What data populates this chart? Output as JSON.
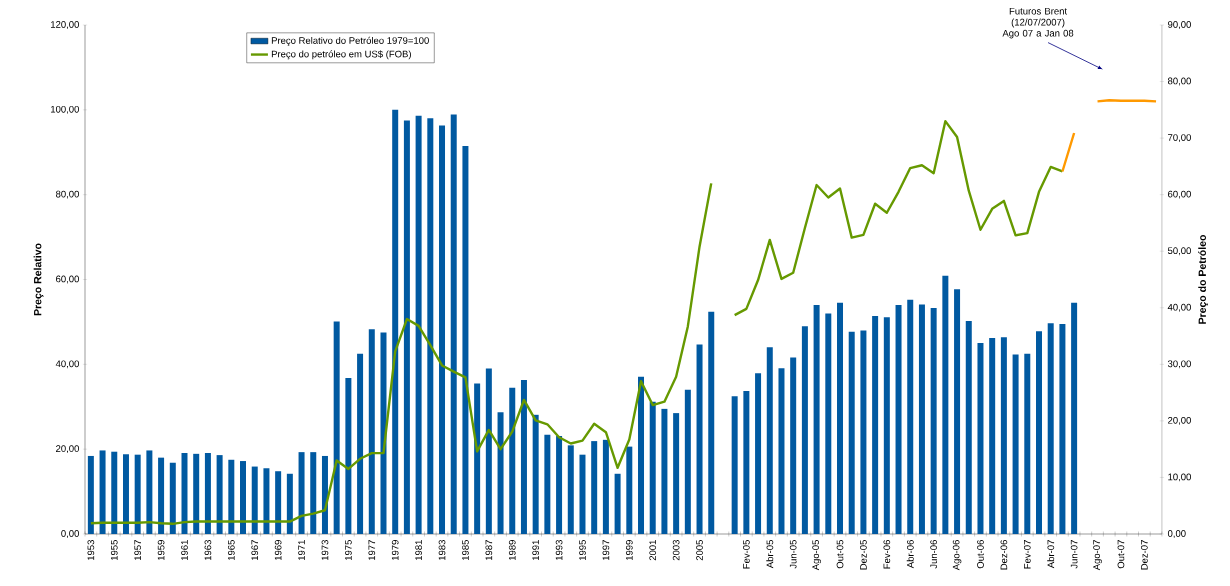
{
  "chart_data": {
    "type": "bar",
    "ylabel": "Preço Relativo",
    "y2label": "Preço do Petróleo",
    "legend": "top left",
    "categories": [
      "1953",
      null,
      "1955",
      null,
      "1957",
      null,
      "1959",
      null,
      "1961",
      null,
      "1963",
      null,
      "1965",
      null,
      "1967",
      null,
      "1969",
      null,
      "1971",
      null,
      "1973",
      null,
      "1975",
      null,
      "1977",
      null,
      "1979",
      null,
      "1981",
      null,
      "1983",
      null,
      "1985",
      null,
      "1987",
      null,
      "1989",
      null,
      "1991",
      null,
      "1993",
      null,
      "1995",
      null,
      "1997",
      null,
      "1999",
      null,
      "2001",
      null,
      "2003",
      null,
      "2005",
      null,
      null,
      null,
      "Fev-05",
      null,
      "Abr-05",
      null,
      "Jun-05",
      null,
      "Ago-05",
      null,
      "Out-05",
      null,
      "Dez-05",
      null,
      "Fev-06",
      null,
      "Abr-06",
      null,
      "Jun-06",
      null,
      "Ago-06",
      null,
      "Out-06",
      null,
      "Dez-06",
      null,
      "Fev-07",
      null,
      "Abr-07",
      null,
      "Jun-07",
      null,
      "Ago-07",
      null,
      "Out-07",
      null,
      "Dez-07",
      null
    ],
    "series": [
      {
        "name": "Preço Relativo do Petróleo 1979=100",
        "color": "#0059a1",
        "values": [
          18.4,
          19.7,
          19.4,
          18.8,
          18.7,
          19.7,
          18.0,
          16.8,
          19.1,
          18.9,
          19.1,
          18.6,
          17.5,
          17.2,
          15.9,
          15.5,
          14.8,
          14.2,
          19.3,
          19.3,
          18.4,
          50.1,
          36.8,
          42.5,
          48.3,
          47.5,
          100.0,
          97.5,
          98.6,
          98.0,
          96.3,
          98.9,
          91.5,
          35.5,
          39.0,
          28.7,
          34.5,
          36.3,
          28.1,
          23.4,
          23.1,
          20.9,
          18.7,
          21.9,
          22.2,
          14.2,
          20.6,
          37.1,
          31.2,
          29.5,
          28.5,
          34.0,
          44.7,
          52.4,
          null,
          32.5,
          33.7,
          37.9,
          44.0,
          39.1,
          41.6,
          49.0,
          54.0,
          52.0,
          54.5,
          47.7,
          48.0,
          51.4,
          51.1,
          54.0,
          55.2,
          54.1,
          53.3,
          60.9,
          57.7,
          50.2,
          45.0,
          46.2,
          46.4,
          42.3,
          42.5,
          47.8,
          49.7,
          49.5,
          54.5,
          null,
          null,
          null,
          null,
          null,
          null,
          null
        ]
      },
      {
        "name": "Preço do petróleo em US$ (FOB)",
        "type": "line",
        "axis": "y2",
        "color": "#669900",
        "values": [
          1.9,
          2.0,
          2.0,
          2.0,
          2.0,
          2.1,
          1.9,
          1.8,
          2.1,
          2.2,
          2.2,
          2.2,
          2.2,
          2.2,
          2.2,
          2.2,
          2.2,
          2.2,
          3.2,
          3.6,
          4.2,
          13.0,
          11.5,
          13.3,
          14.3,
          14.3,
          32.3,
          38.0,
          36.8,
          33.4,
          29.8,
          28.7,
          27.7,
          14.6,
          18.4,
          15.0,
          18.1,
          23.7,
          20.1,
          19.4,
          17.1,
          16.0,
          16.5,
          19.5,
          18.0,
          11.7,
          16.7,
          27.0,
          22.8,
          23.4,
          27.8,
          36.7,
          50.8,
          62.0,
          null,
          38.7,
          39.8,
          44.9,
          52.0,
          45.1,
          46.2,
          54.1,
          61.7,
          59.5,
          61.1,
          52.4,
          52.9,
          58.4,
          56.8,
          60.5,
          64.7,
          65.2,
          63.8,
          73.0,
          70.2,
          60.7,
          53.8,
          57.5,
          58.9,
          52.8,
          53.2,
          60.5,
          64.9,
          64.1,
          null,
          null,
          null,
          null,
          null,
          null,
          null,
          null
        ]
      },
      {
        "type": "line",
        "axis": "y2",
        "color": "#ff9900",
        "values": [
          null,
          null,
          null,
          null,
          null,
          null,
          null,
          null,
          null,
          null,
          null,
          null,
          null,
          null,
          null,
          null,
          null,
          null,
          null,
          null,
          null,
          null,
          null,
          null,
          null,
          null,
          null,
          null,
          null,
          null,
          null,
          null,
          null,
          null,
          null,
          null,
          null,
          null,
          null,
          null,
          null,
          null,
          null,
          null,
          null,
          null,
          null,
          null,
          null,
          null,
          null,
          null,
          null,
          null,
          null,
          null,
          null,
          null,
          null,
          null,
          null,
          null,
          null,
          null,
          null,
          null,
          null,
          null,
          null,
          null,
          null,
          null,
          null,
          null,
          null,
          null,
          null,
          null,
          null,
          null,
          null,
          null,
          null,
          64.1,
          70.9,
          null,
          76.5,
          76.7,
          76.6,
          76.6,
          76.6,
          76.5
        ]
      }
    ],
    "ylim": [
      0,
      120
    ],
    "yticks": [
      {
        "value": 0,
        "label": "0,00"
      },
      {
        "value": 20,
        "label": "20,00"
      },
      {
        "value": 40,
        "label": "40,00"
      },
      {
        "value": 60,
        "label": "60,00"
      },
      {
        "value": 80,
        "label": "80,00"
      },
      {
        "value": 100,
        "label": "100,00"
      },
      {
        "value": 120,
        "label": "120,00"
      }
    ],
    "y2lim": [
      0,
      90
    ],
    "y2ticks": [
      {
        "value": 0,
        "label": "0,00"
      },
      {
        "value": 10,
        "label": "10,00"
      },
      {
        "value": 20,
        "label": "20,00"
      },
      {
        "value": 30,
        "label": "30,00"
      },
      {
        "value": 40,
        "label": "40,00"
      },
      {
        "value": 50,
        "label": "50,00"
      },
      {
        "value": 60,
        "label": "60,00"
      },
      {
        "value": 70,
        "label": "70,00"
      },
      {
        "value": 80,
        "label": "80,00"
      },
      {
        "value": 90,
        "label": "90,00"
      }
    ],
    "annotations": [
      "Futuros Brent (12/07/2007) Ago 07 a Jan 08"
    ]
  }
}
